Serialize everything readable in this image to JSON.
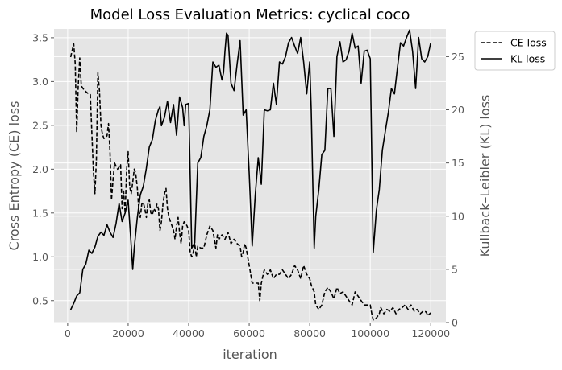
{
  "chart_data": {
    "type": "line",
    "title": "Model Loss Evaluation Metrics: cyclical coco",
    "xlabel": "iteration",
    "ylabel_left": "Cross Entropy (CE) loss",
    "ylabel_right": "Kullback–Leibler (KL) loss",
    "xlim": [
      -4500,
      125000
    ],
    "ylim_left": [
      0.25,
      3.6
    ],
    "ylim_right": [
      0,
      27.6
    ],
    "x_ticks": [
      0,
      20000,
      40000,
      60000,
      80000,
      100000,
      120000
    ],
    "x_tick_labels": [
      "0",
      "20000",
      "40000",
      "60000",
      "80000",
      "100000",
      "120000"
    ],
    "y_left_ticks": [
      0.5,
      1.0,
      1.5,
      2.0,
      2.5,
      3.0,
      3.5
    ],
    "y_left_tick_labels": [
      "0.5",
      "1.0",
      "1.5",
      "2.0",
      "2.5",
      "3.0",
      "3.5"
    ],
    "y_right_ticks": [
      0,
      5,
      10,
      15,
      20,
      25
    ],
    "y_right_tick_labels": [
      "0",
      "5",
      "10",
      "15",
      "20",
      "25"
    ],
    "grid": true,
    "legend_position": "outside-top-right",
    "series": [
      {
        "name": "CE loss",
        "axis": "left",
        "style": "dashed",
        "color": "#000000",
        "points": [
          [
            1000,
            3.28
          ],
          [
            2000,
            3.43
          ],
          [
            2500,
            3.2
          ],
          [
            3000,
            2.42
          ],
          [
            3500,
            2.95
          ],
          [
            4000,
            3.27
          ],
          [
            4500,
            2.95
          ],
          [
            5500,
            2.9
          ],
          [
            6500,
            2.87
          ],
          [
            7500,
            2.85
          ],
          [
            8500,
            1.98
          ],
          [
            9000,
            1.72
          ],
          [
            9500,
            2.1
          ],
          [
            10000,
            3.1
          ],
          [
            10500,
            2.9
          ],
          [
            11000,
            2.5
          ],
          [
            11500,
            2.4
          ],
          [
            12000,
            2.35
          ],
          [
            13000,
            2.38
          ],
          [
            13500,
            2.52
          ],
          [
            14000,
            2.2
          ],
          [
            14500,
            1.65
          ],
          [
            15000,
            1.88
          ],
          [
            15500,
            2.07
          ],
          [
            16500,
            2.0
          ],
          [
            17500,
            2.05
          ],
          [
            18000,
            1.55
          ],
          [
            18500,
            1.75
          ],
          [
            19000,
            1.5
          ],
          [
            19500,
            2.0
          ],
          [
            20000,
            2.2
          ],
          [
            20500,
            1.8
          ],
          [
            21000,
            1.72
          ],
          [
            21500,
            1.85
          ],
          [
            22000,
            2.0
          ],
          [
            22500,
            1.95
          ],
          [
            23000,
            1.8
          ],
          [
            23500,
            1.55
          ],
          [
            24000,
            1.45
          ],
          [
            24500,
            1.6
          ],
          [
            25000,
            1.62
          ],
          [
            25500,
            1.55
          ],
          [
            26000,
            1.45
          ],
          [
            26500,
            1.6
          ],
          [
            27000,
            1.65
          ],
          [
            27500,
            1.5
          ],
          [
            28000,
            1.48
          ],
          [
            28500,
            1.55
          ],
          [
            29000,
            1.52
          ],
          [
            29500,
            1.6
          ],
          [
            30000,
            1.55
          ],
          [
            30500,
            1.3
          ],
          [
            31000,
            1.4
          ],
          [
            31500,
            1.6
          ],
          [
            32000,
            1.72
          ],
          [
            32500,
            1.78
          ],
          [
            33000,
            1.55
          ],
          [
            33500,
            1.45
          ],
          [
            34000,
            1.4
          ],
          [
            34500,
            1.35
          ],
          [
            35000,
            1.3
          ],
          [
            35500,
            1.2
          ],
          [
            36000,
            1.35
          ],
          [
            36500,
            1.45
          ],
          [
            37000,
            1.28
          ],
          [
            37500,
            1.15
          ],
          [
            38000,
            1.35
          ],
          [
            38500,
            1.4
          ],
          [
            39000,
            1.38
          ],
          [
            39500,
            1.35
          ],
          [
            40000,
            1.3
          ],
          [
            40500,
            1.05
          ],
          [
            41000,
            1.0
          ],
          [
            41500,
            1.05
          ],
          [
            42000,
            1.15
          ],
          [
            42500,
            1.0
          ],
          [
            43000,
            1.12
          ],
          [
            44000,
            1.1
          ],
          [
            45000,
            1.1
          ],
          [
            46000,
            1.25
          ],
          [
            47000,
            1.35
          ],
          [
            48000,
            1.3
          ],
          [
            49000,
            1.1
          ],
          [
            49500,
            1.25
          ],
          [
            50000,
            1.2
          ],
          [
            51000,
            1.25
          ],
          [
            52000,
            1.2
          ],
          [
            53000,
            1.28
          ],
          [
            54000,
            1.15
          ],
          [
            55000,
            1.2
          ],
          [
            56000,
            1.15
          ],
          [
            57000,
            1.12
          ],
          [
            57500,
            1.0
          ],
          [
            58000,
            1.05
          ],
          [
            58500,
            1.15
          ],
          [
            59000,
            1.1
          ],
          [
            60000,
            0.9
          ],
          [
            61000,
            0.7
          ],
          [
            62000,
            0.7
          ],
          [
            63000,
            0.7
          ],
          [
            63500,
            0.5
          ],
          [
            64000,
            0.7
          ],
          [
            65000,
            0.85
          ],
          [
            66000,
            0.8
          ],
          [
            67000,
            0.85
          ],
          [
            68000,
            0.75
          ],
          [
            69000,
            0.8
          ],
          [
            70000,
            0.8
          ],
          [
            71000,
            0.85
          ],
          [
            72000,
            0.8
          ],
          [
            73000,
            0.75
          ],
          [
            74000,
            0.8
          ],
          [
            75000,
            0.9
          ],
          [
            76000,
            0.85
          ],
          [
            77000,
            0.75
          ],
          [
            78000,
            0.9
          ],
          [
            79000,
            0.8
          ],
          [
            80000,
            0.75
          ],
          [
            80500,
            0.68
          ],
          [
            81500,
            0.6
          ],
          [
            82000,
            0.45
          ],
          [
            83000,
            0.4
          ],
          [
            84000,
            0.45
          ],
          [
            85000,
            0.6
          ],
          [
            86000,
            0.65
          ],
          [
            87000,
            0.6
          ],
          [
            88000,
            0.52
          ],
          [
            89000,
            0.65
          ],
          [
            90000,
            0.58
          ],
          [
            91000,
            0.6
          ],
          [
            92000,
            0.55
          ],
          [
            93000,
            0.5
          ],
          [
            94000,
            0.45
          ],
          [
            95000,
            0.6
          ],
          [
            96000,
            0.55
          ],
          [
            97000,
            0.5
          ],
          [
            98000,
            0.45
          ],
          [
            99000,
            0.45
          ],
          [
            100000,
            0.45
          ],
          [
            100500,
            0.35
          ],
          [
            101000,
            0.28
          ],
          [
            102000,
            0.3
          ],
          [
            103000,
            0.35
          ],
          [
            103500,
            0.42
          ],
          [
            104500,
            0.35
          ],
          [
            105500,
            0.4
          ],
          [
            106500,
            0.38
          ],
          [
            107500,
            0.42
          ],
          [
            108500,
            0.35
          ],
          [
            109500,
            0.4
          ],
          [
            110500,
            0.42
          ],
          [
            111500,
            0.45
          ],
          [
            112500,
            0.4
          ],
          [
            113500,
            0.45
          ],
          [
            114500,
            0.38
          ],
          [
            115500,
            0.4
          ],
          [
            116500,
            0.35
          ],
          [
            117500,
            0.38
          ],
          [
            118500,
            0.37
          ],
          [
            119000,
            0.33
          ],
          [
            120000,
            0.36
          ]
        ]
      },
      {
        "name": "KL loss",
        "axis": "right",
        "style": "solid",
        "color": "#000000",
        "points": [
          [
            1000,
            1.2
          ],
          [
            2000,
            1.8
          ],
          [
            3000,
            2.5
          ],
          [
            4000,
            2.8
          ],
          [
            5000,
            5.0
          ],
          [
            6000,
            5.5
          ],
          [
            7000,
            6.8
          ],
          [
            8000,
            6.5
          ],
          [
            9000,
            7.1
          ],
          [
            10000,
            8.1
          ],
          [
            11000,
            8.5
          ],
          [
            12000,
            8.2
          ],
          [
            13000,
            9.2
          ],
          [
            14000,
            8.5
          ],
          [
            15000,
            8.0
          ],
          [
            16000,
            9.3
          ],
          [
            17000,
            11.2
          ],
          [
            18000,
            9.5
          ],
          [
            19000,
            10.3
          ],
          [
            20000,
            11.5
          ],
          [
            21000,
            7.3
          ],
          [
            21500,
            5.0
          ],
          [
            22000,
            7.0
          ],
          [
            23000,
            9.8
          ],
          [
            24000,
            12.0
          ],
          [
            25000,
            12.8
          ],
          [
            26000,
            14.5
          ],
          [
            27000,
            16.5
          ],
          [
            28000,
            17.2
          ],
          [
            29000,
            19.0
          ],
          [
            30000,
            20.0
          ],
          [
            30500,
            20.3
          ],
          [
            31000,
            18.5
          ],
          [
            32000,
            19.3
          ],
          [
            33000,
            20.8
          ],
          [
            34000,
            18.8
          ],
          [
            35000,
            20.5
          ],
          [
            36000,
            17.6
          ],
          [
            37000,
            21.2
          ],
          [
            38000,
            20.2
          ],
          [
            38500,
            18.5
          ],
          [
            39000,
            20.5
          ],
          [
            40000,
            20.6
          ],
          [
            41000,
            7.0
          ],
          [
            42000,
            7.5
          ],
          [
            43000,
            15.0
          ],
          [
            44000,
            15.5
          ],
          [
            45000,
            17.5
          ],
          [
            46000,
            18.5
          ],
          [
            47000,
            20.0
          ],
          [
            48000,
            24.5
          ],
          [
            49000,
            24.0
          ],
          [
            50000,
            24.2
          ],
          [
            51000,
            22.8
          ],
          [
            51500,
            23.5
          ],
          [
            52000,
            25.5
          ],
          [
            52500,
            27.2
          ],
          [
            53000,
            27.0
          ],
          [
            54000,
            22.5
          ],
          [
            55000,
            21.8
          ],
          [
            56000,
            24.3
          ],
          [
            57000,
            26.5
          ],
          [
            58000,
            19.5
          ],
          [
            59000,
            20.0
          ],
          [
            60000,
            14.0
          ],
          [
            61000,
            7.2
          ],
          [
            62000,
            12.0
          ],
          [
            63000,
            15.5
          ],
          [
            64000,
            13.0
          ],
          [
            65000,
            20.0
          ],
          [
            66000,
            19.9
          ],
          [
            67000,
            20.0
          ],
          [
            68000,
            22.5
          ],
          [
            69000,
            20.5
          ],
          [
            70000,
            24.5
          ],
          [
            71000,
            24.3
          ],
          [
            72000,
            25.0
          ],
          [
            73000,
            26.3
          ],
          [
            74000,
            26.8
          ],
          [
            75000,
            26.0
          ],
          [
            76000,
            25.3
          ],
          [
            77000,
            26.8
          ],
          [
            78000,
            24.5
          ],
          [
            79000,
            21.5
          ],
          [
            80000,
            24.5
          ],
          [
            80500,
            20.0
          ],
          [
            81500,
            7.0
          ],
          [
            82000,
            10.0
          ],
          [
            83000,
            12.5
          ],
          [
            84000,
            15.8
          ],
          [
            85000,
            16.2
          ],
          [
            86000,
            22.0
          ],
          [
            87000,
            22.0
          ],
          [
            88000,
            17.5
          ],
          [
            89000,
            25.0
          ],
          [
            90000,
            26.4
          ],
          [
            91000,
            24.5
          ],
          [
            92000,
            24.7
          ],
          [
            93000,
            25.5
          ],
          [
            94000,
            27.2
          ],
          [
            95000,
            25.8
          ],
          [
            96000,
            26.0
          ],
          [
            97000,
            22.5
          ],
          [
            98000,
            25.5
          ],
          [
            99000,
            25.6
          ],
          [
            100000,
            24.8
          ],
          [
            101000,
            6.6
          ],
          [
            102000,
            10.5
          ],
          [
            103000,
            12.5
          ],
          [
            104000,
            16.2
          ],
          [
            105000,
            18.0
          ],
          [
            106000,
            19.8
          ],
          [
            107000,
            22.0
          ],
          [
            108000,
            21.5
          ],
          [
            109000,
            24.0
          ],
          [
            110000,
            26.3
          ],
          [
            111000,
            26.0
          ],
          [
            112000,
            26.8
          ],
          [
            113000,
            27.5
          ],
          [
            114000,
            25.5
          ],
          [
            115000,
            22.0
          ],
          [
            116000,
            26.8
          ],
          [
            117000,
            24.8
          ],
          [
            118000,
            24.5
          ],
          [
            119000,
            25.0
          ],
          [
            120000,
            26.3
          ]
        ]
      }
    ]
  }
}
